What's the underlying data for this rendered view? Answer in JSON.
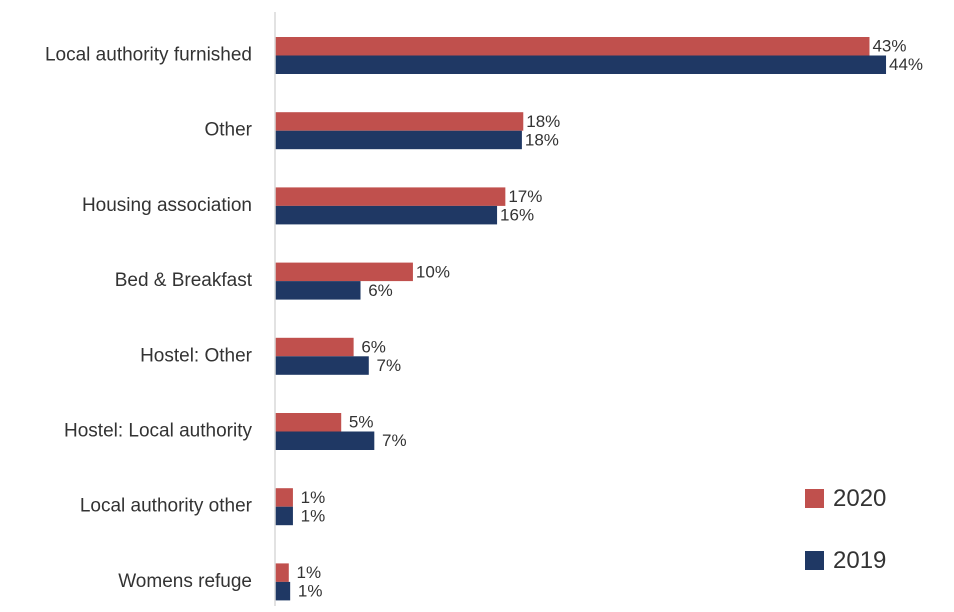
{
  "chart_data": {
    "type": "bar",
    "orientation": "horizontal",
    "categories": [
      "Local authority furnished",
      "Other",
      "Housing association",
      "Bed & Breakfast",
      "Hostel: Other",
      "Hostel: Local authority",
      "Local authority other",
      "Womens refuge"
    ],
    "series": [
      {
        "name": "2020",
        "color": "#c0504d",
        "values": [
          43.1,
          18.0,
          16.7,
          10.0,
          5.7,
          4.8,
          1.3,
          1.0
        ],
        "labels": [
          "43%",
          "18%",
          "17%",
          "10%",
          "6%",
          "5%",
          "1%",
          "1%"
        ]
      },
      {
        "name": "2019",
        "color": "#1f3864",
        "values": [
          44.3,
          17.9,
          16.1,
          6.2,
          6.8,
          7.2,
          1.3,
          1.1
        ],
        "labels": [
          "44%",
          "18%",
          "16%",
          "6%",
          "7%",
          "7%",
          "1%",
          "1%"
        ]
      }
    ],
    "title": "",
    "xlabel": "",
    "ylabel": "",
    "xlim": [
      0,
      45
    ],
    "grid": false,
    "legend": "bottom-right",
    "axis_color": "#d9d9d9"
  }
}
